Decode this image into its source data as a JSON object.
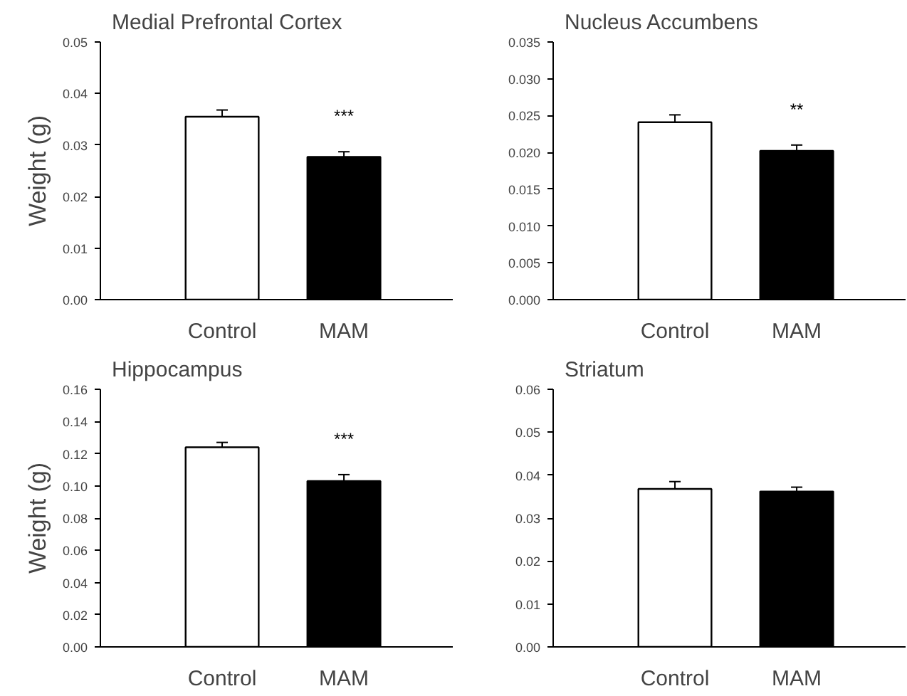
{
  "chart_data": [
    {
      "type": "bar",
      "title": "Medial Prefrontal Cortex",
      "ylabel": "Weight (g)",
      "categories": [
        "Control",
        "MAM"
      ],
      "values": [
        0.0355,
        0.0277
      ],
      "colors": [
        "#ffffff",
        "#000000"
      ],
      "errors": [
        [
          0.0355,
          0.0368
        ],
        [
          0.0277,
          0.0287
        ]
      ],
      "ylim": [
        0,
        0.05
      ],
      "yticks": [
        {
          "value": 0,
          "label": "0.00"
        },
        {
          "value": 0.01,
          "label": "0.01"
        },
        {
          "value": 0.02,
          "label": "0.02"
        },
        {
          "value": 0.03,
          "label": "0.03"
        },
        {
          "value": 0.04,
          "label": "0.04"
        },
        {
          "value": 0.05,
          "label": "0.05"
        }
      ],
      "annotations": [
        "***"
      ],
      "grid": false
    },
    {
      "type": "bar",
      "title": "Nucleus Accumbens",
      "categories": [
        "Control",
        "MAM"
      ],
      "values": [
        0.0241,
        0.0202
      ],
      "colors": [
        "#ffffff",
        "#000000"
      ],
      "errors": [
        [
          0.0241,
          0.0251
        ],
        [
          0.0202,
          0.021
        ]
      ],
      "ylim": [
        0,
        0.035
      ],
      "yticks": [
        {
          "value": 0,
          "label": "0.000"
        },
        {
          "value": 0.005,
          "label": "0.005"
        },
        {
          "value": 0.01,
          "label": "0.010"
        },
        {
          "value": 0.015,
          "label": "0.015"
        },
        {
          "value": 0.02,
          "label": "0.020"
        },
        {
          "value": 0.025,
          "label": "0.025"
        },
        {
          "value": 0.03,
          "label": "0.030"
        },
        {
          "value": 0.035,
          "label": "0.035"
        }
      ],
      "annotations": [
        "**"
      ],
      "grid": false
    },
    {
      "type": "bar",
      "title": "Hippocampus",
      "ylabel": "Weight (g)",
      "categories": [
        "Control",
        "MAM"
      ],
      "values": [
        0.124,
        0.103
      ],
      "colors": [
        "#ffffff",
        "#000000"
      ],
      "errors": [
        [
          0.124,
          0.127
        ],
        [
          0.103,
          0.107
        ]
      ],
      "ylim": [
        0,
        0.16
      ],
      "yticks": [
        {
          "value": 0,
          "label": "0.00"
        },
        {
          "value": 0.02,
          "label": "0.02"
        },
        {
          "value": 0.04,
          "label": "0.04"
        },
        {
          "value": 0.06,
          "label": "0.06"
        },
        {
          "value": 0.08,
          "label": "0.08"
        },
        {
          "value": 0.1,
          "label": "0.10"
        },
        {
          "value": 0.12,
          "label": "0.12"
        },
        {
          "value": 0.14,
          "label": "0.14"
        },
        {
          "value": 0.16,
          "label": "0.16"
        }
      ],
      "annotations": [
        "***"
      ],
      "grid": false
    },
    {
      "type": "bar",
      "title": "Striatum",
      "categories": [
        "Control",
        "MAM"
      ],
      "values": [
        0.0368,
        0.0362
      ],
      "colors": [
        "#ffffff",
        "#000000"
      ],
      "errors": [
        [
          0.0368,
          0.0385
        ],
        [
          0.0362,
          0.0372
        ]
      ],
      "ylim": [
        0,
        0.06
      ],
      "yticks": [
        {
          "value": 0,
          "label": "0.00"
        },
        {
          "value": 0.01,
          "label": "0.01"
        },
        {
          "value": 0.02,
          "label": "0.02"
        },
        {
          "value": 0.03,
          "label": "0.03"
        },
        {
          "value": 0.04,
          "label": "0.04"
        },
        {
          "value": 0.05,
          "label": "0.05"
        },
        {
          "value": 0.06,
          "label": "0.06"
        }
      ],
      "grid": false
    }
  ]
}
